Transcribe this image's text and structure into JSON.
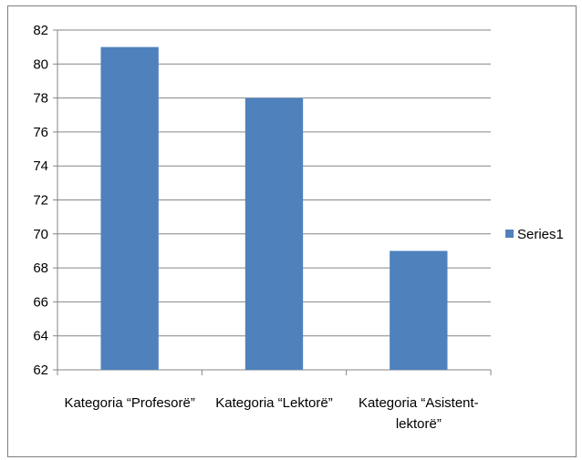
{
  "chart_data": {
    "type": "bar",
    "categories": [
      [
        "Kategoria “Profesorë”"
      ],
      [
        "Kategoria “Lektorë”"
      ],
      [
        "Kategoria “Asistent-",
        "lektorë”"
      ]
    ],
    "series": [
      {
        "name": "Series1",
        "values": [
          81,
          78,
          69
        ],
        "color": "#4f81bd"
      }
    ],
    "ylim": [
      62,
      82
    ],
    "yticks": [
      62,
      64,
      66,
      68,
      70,
      72,
      74,
      76,
      78,
      80,
      82
    ],
    "grid": true,
    "legend": "right",
    "title": "",
    "xlabel": "",
    "ylabel": ""
  }
}
